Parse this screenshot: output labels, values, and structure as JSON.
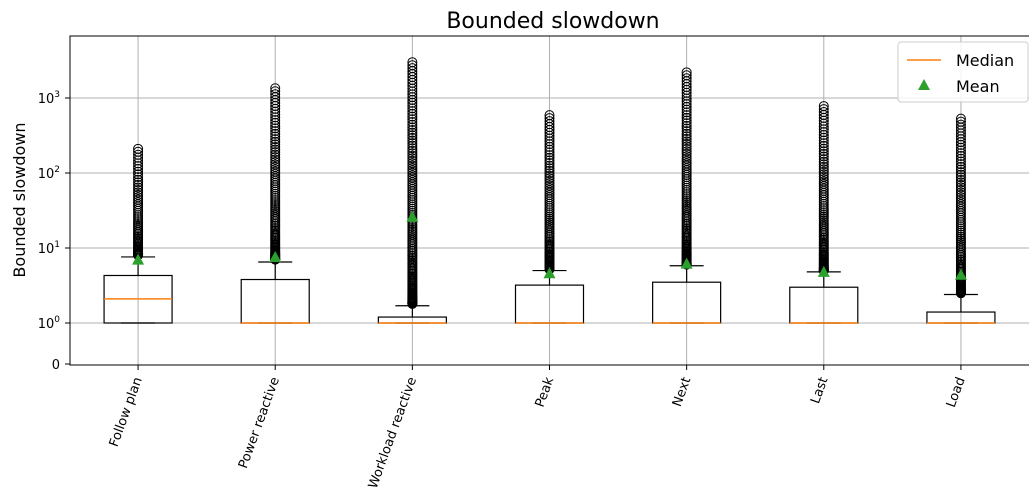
{
  "chart_data": {
    "type": "box",
    "title": "Bounded slowdown",
    "xlabel": "",
    "ylabel": "Bounded slowdown",
    "y_scale": "symlog",
    "y_ticks": [
      "0",
      "10^0",
      "10^1",
      "10^2",
      "10^3"
    ],
    "y_tick_values": [
      0,
      1,
      10,
      100,
      1000
    ],
    "ylim": [
      0,
      3300
    ],
    "grid": true,
    "legend": {
      "position": "top-right",
      "entries": [
        "Median",
        "Mean"
      ]
    },
    "colors": {
      "median": "#ff7f0e",
      "mean": "#2ca02c",
      "box": "#000000"
    },
    "categories": [
      "Follow plan",
      "Power reactive",
      "Workload reactive",
      "Peak",
      "Next",
      "Last",
      "Load"
    ],
    "boxes": [
      {
        "label": "Follow plan",
        "whislo": 1.0,
        "q1": 1.0,
        "med": 2.1,
        "q3": 4.3,
        "whishi": 7.6,
        "mean": 7.0,
        "fliers_min": 8.0,
        "fliers_max": 210
      },
      {
        "label": "Power reactive",
        "whislo": 1.0,
        "q1": 1.0,
        "med": 1.0,
        "q3": 3.8,
        "whishi": 6.5,
        "mean": 7.6,
        "fliers_min": 7.0,
        "fliers_max": 1350
      },
      {
        "label": "Workload reactive",
        "whislo": 1.0,
        "q1": 1.0,
        "med": 1.0,
        "q3": 1.2,
        "whishi": 1.7,
        "mean": 26,
        "fliers_min": 1.8,
        "fliers_max": 3000
      },
      {
        "label": "Peak",
        "whislo": 1.0,
        "q1": 1.0,
        "med": 1.0,
        "q3": 3.2,
        "whishi": 5.0,
        "mean": 4.6,
        "fliers_min": 5.2,
        "fliers_max": 590
      },
      {
        "label": "Next",
        "whislo": 1.0,
        "q1": 1.0,
        "med": 1.0,
        "q3": 3.5,
        "whishi": 5.8,
        "mean": 6.2,
        "fliers_min": 6.0,
        "fliers_max": 2200
      },
      {
        "label": "Last",
        "whislo": 1.0,
        "q1": 1.0,
        "med": 1.0,
        "q3": 3.0,
        "whishi": 4.8,
        "mean": 4.8,
        "fliers_min": 5.0,
        "fliers_max": 780
      },
      {
        "label": "Load",
        "whislo": 1.0,
        "q1": 1.0,
        "med": 1.0,
        "q3": 1.4,
        "whishi": 2.4,
        "mean": 4.4,
        "fliers_min": 2.5,
        "fliers_max": 530
      }
    ]
  }
}
